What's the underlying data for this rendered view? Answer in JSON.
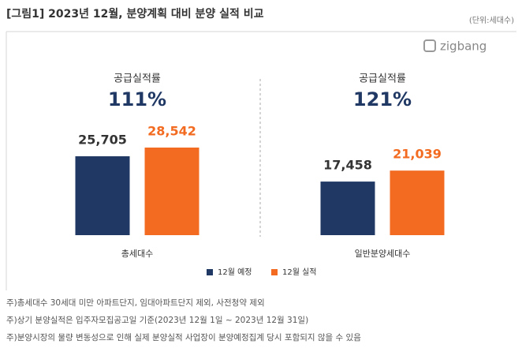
{
  "chart_data": {
    "type": "bar",
    "title": "[그림1] 2023년 12월, 분양계획 대비 분양 실적 비교",
    "unit": "(단위:세대수)",
    "logo": "zigbang",
    "categories": [
      "총세대수",
      "일반분양세대수"
    ],
    "series": [
      {
        "name": "12월 예정",
        "color": "#203864",
        "values": [
          25705,
          17458
        ],
        "value_labels": [
          "25,705",
          "17,458"
        ]
      },
      {
        "name": "12월 실적",
        "color": "#f26b21",
        "values": [
          28542,
          21039
        ],
        "value_labels": [
          "28,542",
          "21,039"
        ]
      }
    ],
    "annotations": [
      {
        "label": "공급실적률",
        "value": "111%"
      },
      {
        "label": "공급실적률",
        "value": "121%"
      }
    ],
    "notes": [
      "주)총세대수 30세대 미만 아파트단지, 임대아파트단지 제외, 사전청약 제외",
      "주)상기 분양실적은 입주자모집공고일 기준(2023년 12월 1일 ~ 2023년 12월 31일)",
      "주)분양시장의 물량 변동성으로 인해 실제 분양실적 사업장이 분양예정집계 당시 포함되지 않을 수 있음"
    ]
  }
}
